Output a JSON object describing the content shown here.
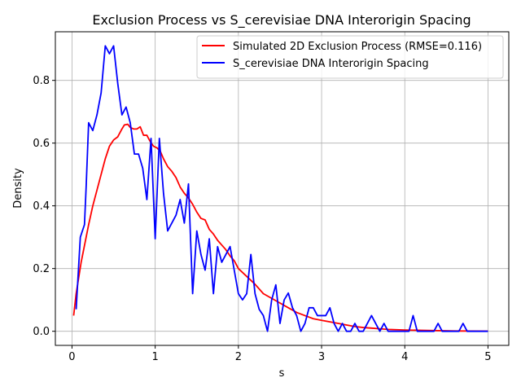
{
  "chart_data": {
    "type": "line",
    "title": "Exclusion Process vs S_cerevisiae DNA Interorigin Spacing",
    "xlabel": "s",
    "ylabel": "Density",
    "xlim": [
      -0.2,
      5.25
    ],
    "ylim": [
      -0.045,
      0.955
    ],
    "xticks": [
      0,
      1,
      2,
      3,
      4,
      5
    ],
    "xtick_labels": [
      "0",
      "1",
      "2",
      "3",
      "4",
      "5"
    ],
    "yticks": [
      0.0,
      0.2,
      0.4,
      0.6,
      0.8
    ],
    "ytick_labels": [
      "0.0",
      "0.2",
      "0.4",
      "0.6",
      "0.8"
    ],
    "grid": true,
    "legend_position": "top-right",
    "series": [
      {
        "name": "Simulated 2D Exclusion Process (RMSE=0.116)",
        "color": "#ff0000",
        "x": [
          0.02,
          0.05,
          0.08,
          0.11,
          0.14,
          0.17,
          0.2,
          0.25,
          0.3,
          0.35,
          0.4,
          0.45,
          0.5,
          0.55,
          0.6,
          0.63,
          0.67,
          0.7,
          0.74,
          0.78,
          0.82,
          0.86,
          0.9,
          0.94,
          0.98,
          1.02,
          1.06,
          1.1,
          1.15,
          1.2,
          1.25,
          1.3,
          1.35,
          1.4,
          1.45,
          1.5,
          1.55,
          1.6,
          1.65,
          1.7,
          1.75,
          1.8,
          1.85,
          1.9,
          1.95,
          2.0,
          2.1,
          2.2,
          2.3,
          2.4,
          2.5,
          2.6,
          2.7,
          2.8,
          2.9,
          3.0,
          3.1,
          3.2,
          3.3,
          3.4,
          3.5,
          3.6,
          3.7,
          3.8,
          3.9,
          4.0,
          4.2,
          4.4,
          4.6,
          4.8,
          5.0
        ],
        "y": [
          0.05,
          0.12,
          0.17,
          0.22,
          0.26,
          0.3,
          0.34,
          0.4,
          0.45,
          0.5,
          0.55,
          0.59,
          0.61,
          0.62,
          0.645,
          0.658,
          0.66,
          0.65,
          0.645,
          0.645,
          0.652,
          0.625,
          0.625,
          0.605,
          0.59,
          0.585,
          0.575,
          0.55,
          0.525,
          0.51,
          0.49,
          0.46,
          0.44,
          0.425,
          0.405,
          0.38,
          0.36,
          0.355,
          0.325,
          0.31,
          0.29,
          0.275,
          0.26,
          0.24,
          0.225,
          0.2,
          0.175,
          0.15,
          0.12,
          0.105,
          0.09,
          0.075,
          0.06,
          0.05,
          0.04,
          0.035,
          0.03,
          0.025,
          0.02,
          0.015,
          0.012,
          0.01,
          0.008,
          0.006,
          0.005,
          0.004,
          0.003,
          0.002,
          0.001,
          0.0008,
          0.0005
        ]
      },
      {
        "name": "S_cerevisiae DNA Interorigin Spacing",
        "color": "#0000ff",
        "x": [
          0.05,
          0.1,
          0.15,
          0.17,
          0.2,
          0.25,
          0.3,
          0.35,
          0.4,
          0.45,
          0.5,
          0.55,
          0.6,
          0.65,
          0.7,
          0.75,
          0.8,
          0.85,
          0.9,
          0.95,
          1.0,
          1.05,
          1.1,
          1.15,
          1.2,
          1.25,
          1.3,
          1.35,
          1.4,
          1.45,
          1.5,
          1.55,
          1.6,
          1.65,
          1.7,
          1.75,
          1.8,
          1.85,
          1.9,
          1.95,
          2.0,
          2.05,
          2.1,
          2.15,
          2.2,
          2.25,
          2.3,
          2.35,
          2.4,
          2.45,
          2.5,
          2.55,
          2.6,
          2.65,
          2.7,
          2.75,
          2.8,
          2.85,
          2.9,
          2.95,
          3.0,
          3.05,
          3.1,
          3.15,
          3.2,
          3.25,
          3.3,
          3.35,
          3.4,
          3.45,
          3.5,
          3.55,
          3.6,
          3.65,
          3.7,
          3.75,
          3.8,
          3.85,
          3.9,
          3.95,
          4.0,
          4.05,
          4.1,
          4.15,
          4.2,
          4.25,
          4.3,
          4.35,
          4.4,
          4.45,
          4.5,
          4.55,
          4.6,
          4.65,
          4.7,
          4.75,
          4.8,
          4.85,
          4.9,
          4.95,
          5.0
        ],
        "y": [
          0.07,
          0.3,
          0.34,
          0.46,
          0.665,
          0.64,
          0.69,
          0.76,
          0.91,
          0.885,
          0.91,
          0.79,
          0.69,
          0.715,
          0.665,
          0.565,
          0.565,
          0.52,
          0.42,
          0.615,
          0.295,
          0.615,
          0.44,
          0.32,
          0.345,
          0.37,
          0.42,
          0.345,
          0.47,
          0.12,
          0.32,
          0.245,
          0.195,
          0.295,
          0.12,
          0.27,
          0.22,
          0.245,
          0.27,
          0.195,
          0.12,
          0.1,
          0.12,
          0.245,
          0.12,
          0.07,
          0.05,
          0.0,
          0.1,
          0.148,
          0.025,
          0.1,
          0.122,
          0.075,
          0.05,
          0.0,
          0.025,
          0.075,
          0.075,
          0.05,
          0.05,
          0.05,
          0.075,
          0.025,
          0.0,
          0.025,
          0.0,
          0.0,
          0.025,
          0.0,
          0.0,
          0.025,
          0.05,
          0.025,
          0.0,
          0.025,
          0.0,
          0.0,
          0.0,
          0.0,
          0.0,
          0.0,
          0.05,
          0.0,
          0.0,
          0.0,
          0.0,
          0.0,
          0.025,
          0.0,
          0.0,
          0.0,
          0.0,
          0.0,
          0.025,
          0.0,
          0.0,
          0.0,
          0.0,
          0.0,
          0.0
        ]
      }
    ]
  }
}
